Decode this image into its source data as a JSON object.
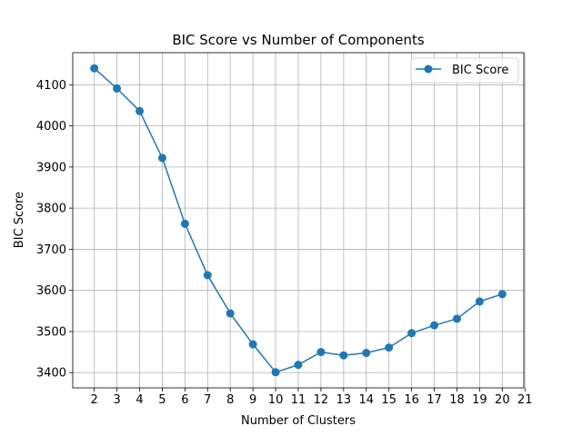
{
  "chart_data": {
    "type": "line",
    "title": "BIC Score vs Number of Components",
    "xlabel": "Number of Clusters",
    "ylabel": "BIC Score",
    "x": [
      2,
      3,
      4,
      5,
      6,
      7,
      8,
      9,
      10,
      11,
      12,
      13,
      14,
      15,
      16,
      17,
      18,
      19,
      20
    ],
    "series": [
      {
        "name": "BIC Score",
        "color": "#1f77b4",
        "marker": "circle",
        "values": [
          4140,
          4091,
          4036,
          3922,
          3762,
          3637,
          3544,
          3469,
          3401,
          3419,
          3450,
          3442,
          3448,
          3461,
          3496,
          3515,
          3531,
          3573,
          3591
        ]
      }
    ],
    "xticks": [
      2,
      3,
      4,
      5,
      6,
      7,
      8,
      9,
      10,
      11,
      12,
      13,
      14,
      15,
      16,
      17,
      18,
      19,
      20,
      21
    ],
    "yticks": [
      3400,
      3500,
      3600,
      3700,
      3800,
      3900,
      4000,
      4100
    ],
    "xlim": [
      1.05,
      20.95
    ],
    "ylim": [
      3363,
      4178
    ],
    "grid": true,
    "legend_position": "top-right"
  }
}
